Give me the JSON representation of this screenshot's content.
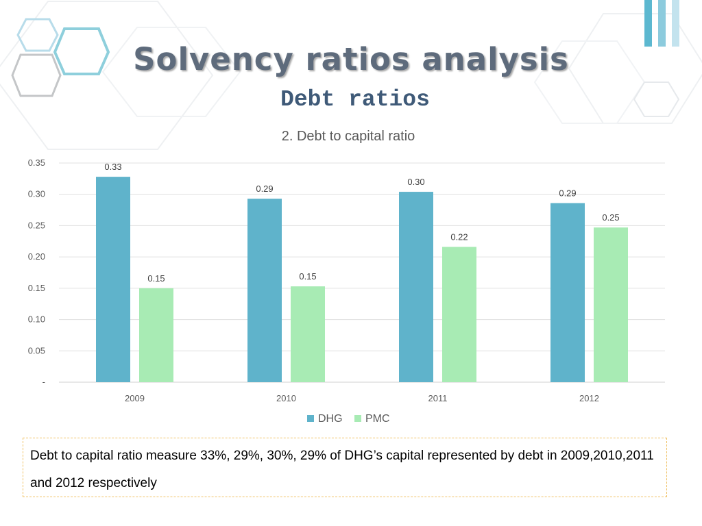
{
  "slide": {
    "title": "Solvency ratios analysis",
    "subtitle": "Debt ratios"
  },
  "summary": {
    "text": "Debt to capital ratio measure 33%, 29%, 30%, 29% of DHG’s capital represented by debt in 2009,2010,2011 and 2012 respectively"
  },
  "colors": {
    "dhg": "#5fb3cb",
    "pmc": "#a8ebb4",
    "title": "#5e6b7c",
    "subtitle": "#3f5a78",
    "box_border": "#f0c060"
  },
  "chart_data": {
    "type": "bar",
    "title": "2. Debt to capital ratio",
    "xlabel": "",
    "ylabel": "",
    "categories": [
      "2009",
      "2010",
      "2011",
      "2012"
    ],
    "series": [
      {
        "name": "DHG",
        "values": [
          0.328,
          0.293,
          0.304,
          0.286
        ],
        "labels": [
          "0.33",
          "0.29",
          "0.30",
          "0.29"
        ]
      },
      {
        "name": "PMC",
        "values": [
          0.15,
          0.153,
          0.216,
          0.247
        ],
        "labels": [
          "0.15",
          "0.15",
          "0.22",
          "0.25"
        ]
      }
    ],
    "ylim": [
      0,
      0.35
    ],
    "yticks": [
      "-",
      "0.05",
      "0.10",
      "0.15",
      "0.20",
      "0.25",
      "0.30",
      "0.35"
    ],
    "grid": true,
    "legend": "bottom"
  }
}
